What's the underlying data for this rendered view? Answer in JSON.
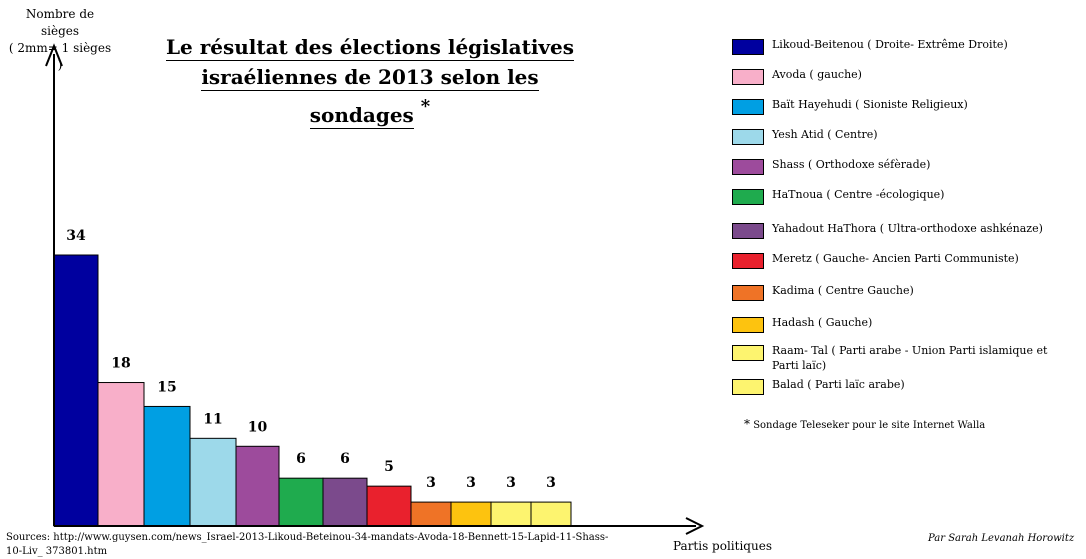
{
  "chart_data": {
    "type": "bar",
    "title_line1": "Le résultat des élections législatives",
    "title_line2": "israéliennes  de 2013 selon les sondages",
    "title_mark": "*",
    "ylabel_line1": "Nombre de sièges",
    "ylabel_line2": "( 2mm= 1 sièges )",
    "xlabel": "Partis politiques",
    "ylim": [
      0,
      34
    ],
    "categories": [
      "Likoud-Beitenou ( Droite- Extrême Droite)",
      "Avoda ( gauche)",
      "Baït Hayehudi ( Sioniste Religieux)",
      "Yesh Atid ( Centre)",
      "Shass ( Orthodoxe séfèrade)",
      "HaTnoua ( Centre -écologique)",
      "Yahadout HaThora ( Ultra-orthodoxe ashkénaze)",
      "Meretz ( Gauche- Ancien Parti Communiste)",
      "Kadima ( Centre Gauche)",
      "Hadash ( Gauche)",
      "Raam- Tal ( Parti arabe - Union Parti islamique et Parti laïc)",
      "Balad ( Parti laïc arabe)"
    ],
    "values": [
      34,
      18,
      15,
      11,
      10,
      6,
      6,
      5,
      3,
      3,
      3,
      3
    ],
    "colors": [
      "#00009f",
      "#f8afc9",
      "#009fe3",
      "#9dd9ea",
      "#9d4b9c",
      "#1fab4e",
      "#7b4a8c",
      "#e9212d",
      "#ef7326",
      "#fdc30f",
      "#fdf46f",
      "#fdf46f"
    ],
    "legend_position": "right",
    "grid": false
  },
  "footnote": "Sondage Teleseker pour le site Internet Walla",
  "footnote_mark": "*",
  "sources": "Sources: http://www.guysen.com/news_Israel-2013-Likoud-Beteinou-34-mandats-Avoda-18-Bennett-15-Lapid-11-Shass-10-Liv_ 373801.htm",
  "author": "Par Sarah Levanah Horowitz"
}
